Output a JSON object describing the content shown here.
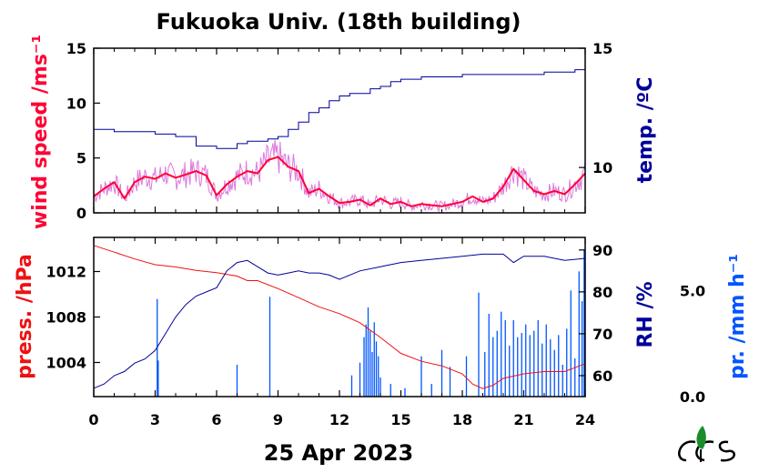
{
  "title": "Fukuoka Univ. (18th building)",
  "xlabel": "25 Apr 2023",
  "colors": {
    "wind": "#ff0033",
    "wind_raw": "#dd77dd",
    "temp": "#000099",
    "press": "#ee1111",
    "rh": "#000099",
    "precip": "#0055ff",
    "rh_label": "#000099",
    "precip_label": "#0055ff"
  },
  "chart_data": [
    {
      "type": "line",
      "panel": "top",
      "xlabel": "",
      "ylabel": "wind speed /ms⁻¹",
      "y2label": "temp. /ºC",
      "xlim": [
        0,
        24
      ],
      "ylim": [
        0,
        15
      ],
      "y2lim": [
        8.1,
        15
      ],
      "xticks": [
        "0",
        "3",
        "6",
        "9",
        "12",
        "15",
        "18",
        "21",
        "24"
      ],
      "yticks": [
        "0",
        "5",
        "10",
        "15"
      ],
      "y2ticks": [
        "10",
        "15"
      ],
      "series": [
        {
          "name": "",
          "axis": "left",
          "x": [
            0,
            0.5,
            1,
            1.5,
            2,
            2.5,
            3,
            3.5,
            4,
            4.5,
            5,
            5.5,
            6,
            6.5,
            7,
            7.5,
            8,
            8.5,
            9,
            9.5,
            10,
            10.5,
            11,
            11.5,
            12,
            12.5,
            13,
            13.5,
            14,
            14.5,
            15,
            15.5,
            16,
            16.5,
            17,
            17.5,
            18,
            18.5,
            19,
            19.5,
            20,
            20.5,
            21,
            21.5,
            22,
            22.5,
            23,
            23.5,
            24
          ],
          "values": [
            1.5,
            2.2,
            2.8,
            1.3,
            2.8,
            3.3,
            3.1,
            3.6,
            3.2,
            3.5,
            3.8,
            3.4,
            1.6,
            2.6,
            3.3,
            3.8,
            3.6,
            4.8,
            5.1,
            4.2,
            3.8,
            1.8,
            2.2,
            1.5,
            0.9,
            1.0,
            1.2,
            0.7,
            1.3,
            0.8,
            1.0,
            0.6,
            0.8,
            0.7,
            0.6,
            0.8,
            1.0,
            1.5,
            1.0,
            1.3,
            2.4,
            4.0,
            3.0,
            2.0,
            1.7,
            2.0,
            1.7,
            2.6,
            3.6
          ]
        },
        {
          "name": "",
          "axis": "right",
          "x": [
            0,
            1,
            2,
            3,
            4,
            5,
            6,
            6.5,
            7,
            7.5,
            8,
            8.5,
            9,
            9.5,
            10,
            10.5,
            11,
            11.5,
            12,
            12.5,
            13,
            13.5,
            14,
            14.5,
            15,
            15.5,
            16,
            16.5,
            17,
            17.5,
            18,
            18.5,
            19,
            19.5,
            20,
            20.5,
            21,
            21.5,
            22,
            22.5,
            23,
            23.5,
            24
          ],
          "values": [
            11.6,
            11.5,
            11.5,
            11.4,
            11.3,
            10.9,
            10.8,
            10.8,
            11.0,
            11.1,
            11.1,
            11.2,
            11.3,
            11.6,
            11.9,
            12.3,
            12.5,
            12.8,
            13.0,
            13.1,
            13.1,
            13.3,
            13.4,
            13.6,
            13.7,
            13.7,
            13.8,
            13.8,
            13.8,
            13.8,
            13.9,
            13.9,
            13.9,
            13.9,
            13.9,
            13.9,
            13.9,
            13.9,
            14.0,
            14.0,
            14.0,
            14.1,
            14.1
          ]
        }
      ]
    },
    {
      "type": "line",
      "panel": "bottom",
      "xlabel": "25 Apr 2023",
      "ylabel": "press. /hPa",
      "y2label": "RH /%",
      "y3label": "pr. /mm h⁻¹",
      "xlim": [
        0,
        24
      ],
      "ylim": [
        1001,
        1015
      ],
      "y2lim": [
        55,
        93
      ],
      "y3lim": [
        0,
        7.5
      ],
      "xticks": [
        "0",
        "3",
        "6",
        "9",
        "12",
        "15",
        "18",
        "21",
        "24"
      ],
      "yticks": [
        "1004",
        "1008",
        "1012"
      ],
      "y2ticks": [
        "60",
        "70",
        "80",
        "90"
      ],
      "y3ticks": [
        "0.0",
        "5.0"
      ],
      "series": [
        {
          "name": "",
          "axis": "left",
          "x": [
            0,
            1,
            2,
            3,
            4,
            5,
            6,
            7,
            7.5,
            8,
            9,
            10,
            11,
            12,
            13,
            14,
            15,
            16,
            17,
            18,
            18.5,
            19,
            19.5,
            20,
            21,
            22,
            23,
            24
          ],
          "values": [
            1014.3,
            1013.7,
            1013.1,
            1012.6,
            1012.4,
            1012.1,
            1011.9,
            1011.6,
            1011.2,
            1011.2,
            1010.5,
            1009.7,
            1008.9,
            1008.3,
            1007.5,
            1006.2,
            1004.8,
            1004.1,
            1003.7,
            1003.0,
            1002.1,
            1001.7,
            1002.0,
            1002.6,
            1003.0,
            1003.2,
            1003.2,
            1003.9
          ]
        },
        {
          "name": "",
          "axis": "right",
          "x": [
            0,
            0.5,
            1,
            1.5,
            2,
            2.5,
            3,
            3.5,
            4,
            4.5,
            5,
            5.5,
            6,
            6.5,
            7,
            7.5,
            8,
            8.5,
            9,
            9.5,
            10,
            10.5,
            11,
            11.5,
            12,
            12.5,
            13,
            14,
            15,
            16,
            17,
            18,
            19,
            20,
            20.5,
            21,
            22,
            23,
            24
          ],
          "values": [
            57,
            58,
            60,
            61,
            63,
            64,
            66,
            70,
            74,
            77,
            79,
            80,
            81,
            85,
            87,
            87.5,
            86,
            84.5,
            84,
            84.5,
            85,
            84.5,
            84.5,
            84,
            83,
            84,
            85,
            86,
            87,
            87.5,
            88,
            88.5,
            89,
            89,
            87,
            88.5,
            88.5,
            87.5,
            88
          ]
        }
      ],
      "precipitation": {
        "axis": "right-outer",
        "x": [
          3.1,
          3.15,
          7.0,
          8.6,
          12.6,
          13.0,
          13.2,
          13.3,
          13.4,
          13.5,
          13.6,
          13.7,
          13.8,
          13.9,
          14.0,
          14.5,
          15.2,
          16.0,
          16.5,
          17.0,
          17.4,
          18.2,
          18.8,
          19.1,
          19.3,
          19.5,
          19.7,
          19.9,
          20.1,
          20.3,
          20.5,
          20.7,
          20.9,
          21.1,
          21.3,
          21.5,
          21.7,
          21.9,
          22.1,
          22.3,
          22.5,
          22.7,
          22.9,
          23.1,
          23.3,
          23.5,
          23.7,
          23.85,
          23.95
        ],
        "values": [
          4.6,
          1.7,
          1.5,
          4.7,
          1.0,
          1.6,
          2.8,
          3.4,
          4.2,
          3.1,
          2.1,
          3.5,
          2.6,
          1.9,
          0.9,
          0.6,
          0.4,
          1.9,
          0.6,
          2.2,
          1.4,
          1.9,
          4.9,
          2.1,
          3.9,
          2.8,
          3.1,
          4.0,
          3.6,
          2.4,
          3.6,
          2.8,
          3.0,
          3.4,
          2.9,
          3.1,
          3.6,
          2.5,
          3.4,
          2.7,
          2.2,
          2.9,
          1.5,
          3.2,
          5.0,
          1.8,
          5.9,
          4.5,
          6.9
        ]
      }
    }
  ]
}
